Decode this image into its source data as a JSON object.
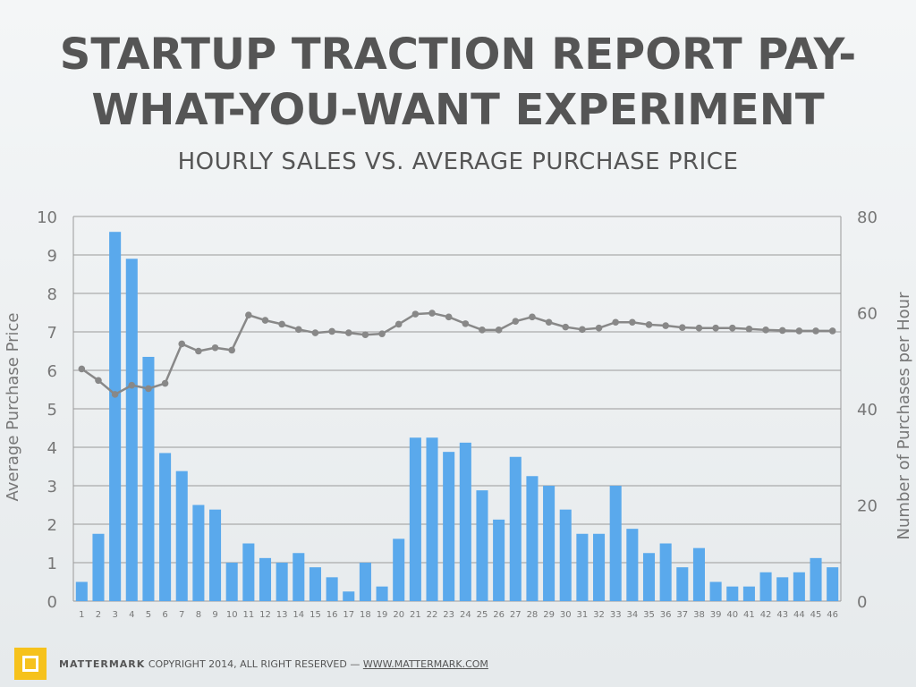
{
  "header": {
    "title_line1": "STARTUP TRACTION REPORT PAY-",
    "title_line2": "WHAT-YOU-WANT EXPERIMENT",
    "subtitle": "HOURLY SALES  VS.  AVERAGE PURCHASE PRICE"
  },
  "footer": {
    "brand": "MATTERMARK",
    "copyright": "COPYRIGHT 2014, ALL RIGHT RESERVED —",
    "link": "WWW.MATTERMARK.COM",
    "logo_color": "#f6c21c"
  },
  "chart_data": {
    "type": "bar",
    "title": "",
    "ylabel": "Average Purchase Price",
    "y2label": "Number of Purchases per Hour",
    "ylim": [
      0,
      10
    ],
    "y2lim": [
      0,
      80
    ],
    "yticks": [
      0,
      1,
      2,
      3,
      4,
      5,
      6,
      7,
      8,
      9,
      10
    ],
    "y2ticks": [
      0,
      20,
      40,
      60,
      80
    ],
    "grid": true,
    "categories": [
      "1",
      "2",
      "3",
      "4",
      "5",
      "6",
      "7",
      "8",
      "9",
      "10",
      "11",
      "12",
      "13",
      "14",
      "15",
      "16",
      "17",
      "18",
      "19",
      "20",
      "21",
      "22",
      "23",
      "24",
      "25",
      "26",
      "27",
      "28",
      "29",
      "30",
      "31",
      "32",
      "33",
      "34",
      "35",
      "36",
      "37",
      "38",
      "39",
      "40",
      "41",
      "42",
      "43",
      "44",
      "45",
      "46"
    ],
    "series": [
      {
        "axis": "left",
        "kind": "bar",
        "color": "#5aa9ec",
        "values": [
          0.5,
          1.75,
          9.6,
          8.9,
          6.35,
          3.85,
          3.38,
          2.5,
          2.38,
          1.0,
          1.5,
          1.12,
          1.0,
          1.25,
          0.88,
          0.62,
          0.25,
          1.0,
          0.38,
          1.62,
          4.25,
          4.25,
          3.88,
          4.12,
          2.88,
          2.12,
          3.75,
          3.25,
          3.0,
          2.38,
          1.75,
          1.75,
          3.0,
          1.88,
          1.25,
          1.5,
          0.88,
          1.38,
          0.5,
          0.38,
          0.38,
          0.75,
          0.62,
          0.75,
          1.12,
          0.88
        ]
      },
      {
        "axis": "right",
        "kind": "line",
        "color": "#888888",
        "values": [
          48.3,
          45.9,
          43.0,
          44.9,
          44.2,
          45.3,
          53.5,
          52.0,
          52.7,
          52.2,
          59.5,
          58.4,
          57.6,
          56.5,
          55.8,
          56.1,
          55.8,
          55.4,
          55.6,
          57.6,
          59.7,
          59.9,
          59.1,
          57.7,
          56.4,
          56.4,
          58.2,
          59.1,
          58.0,
          57.0,
          56.5,
          56.8,
          58.0,
          58.0,
          57.5,
          57.3,
          56.9,
          56.8,
          56.8,
          56.8,
          56.6,
          56.4,
          56.3,
          56.2,
          56.2,
          56.2
        ]
      }
    ]
  }
}
